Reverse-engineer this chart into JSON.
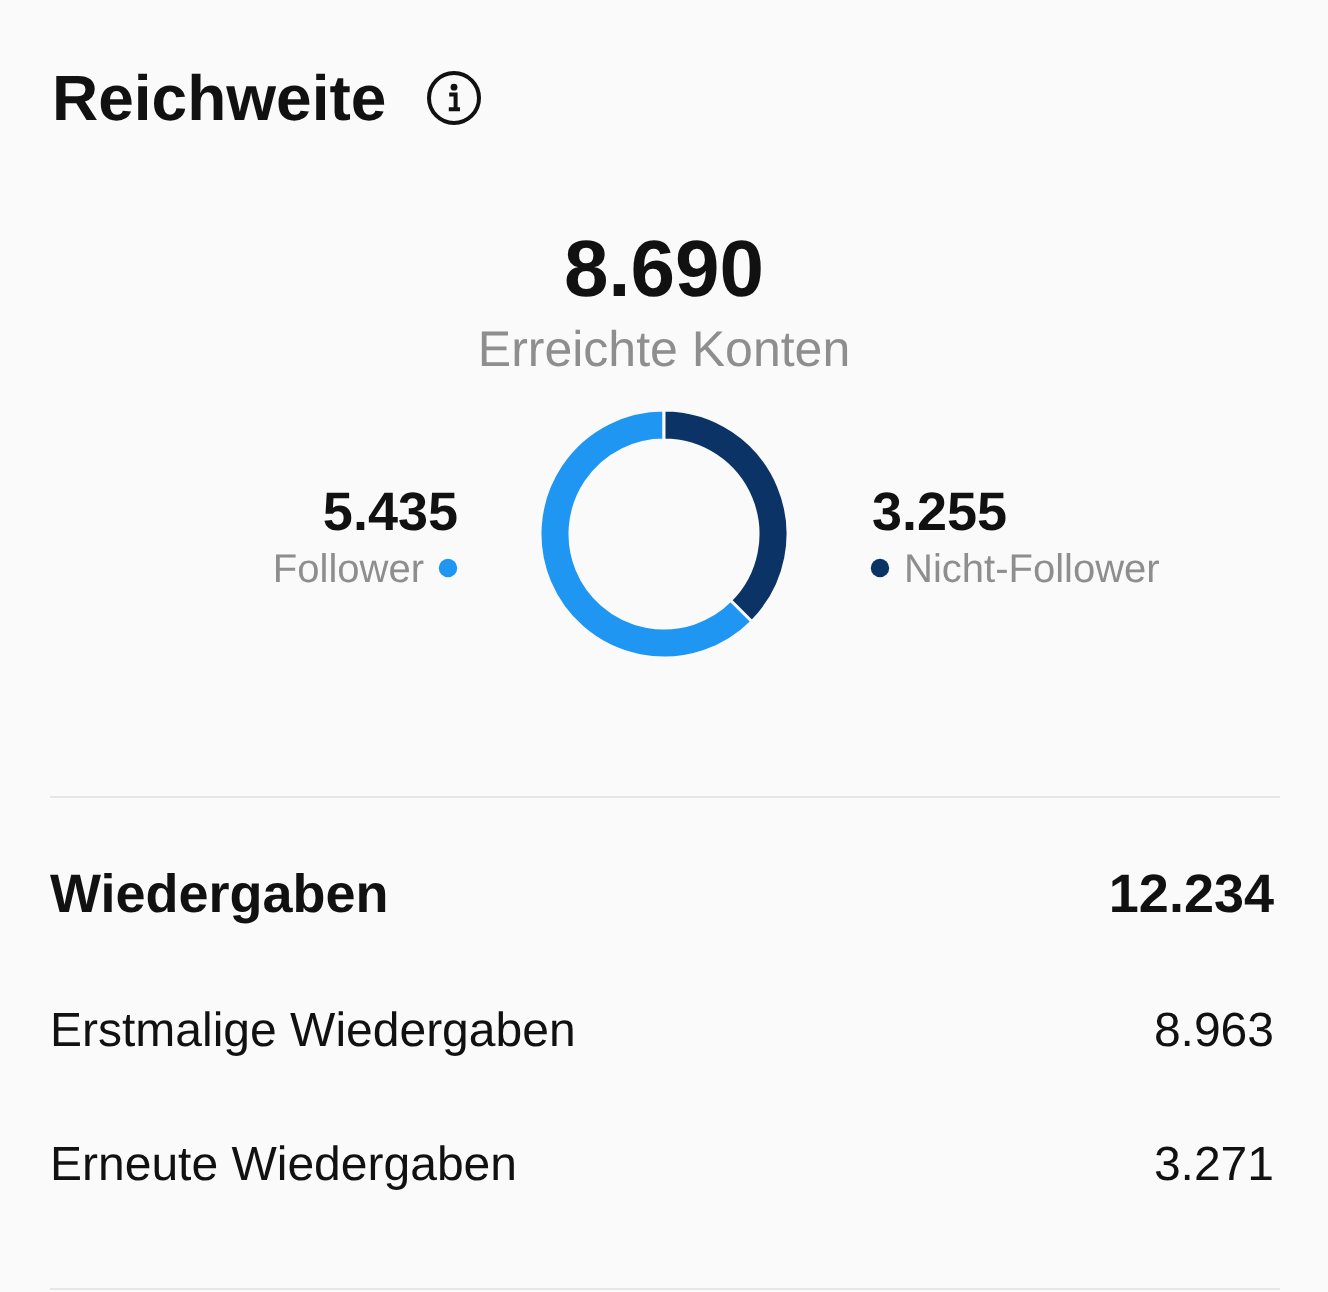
{
  "chart_data": [
    {
      "type": "donut",
      "title": "Reichweite",
      "annotations": [
        "8.690",
        "Erreichte Konten"
      ],
      "categories": [
        "Follower",
        "Nicht-Follower"
      ],
      "values": [
        5435,
        3255
      ],
      "value_labels": [
        "5.435",
        "3.255"
      ],
      "colors": [
        "#1f96f2",
        "#0c3366"
      ]
    },
    {
      "type": "other",
      "title": "Wiedergaben",
      "annotations": [
        "12.234",
        "Erstmalige Wiedergaben",
        "8.963",
        "Erneute Wiedergaben",
        "3.271"
      ]
    }
  ]
}
